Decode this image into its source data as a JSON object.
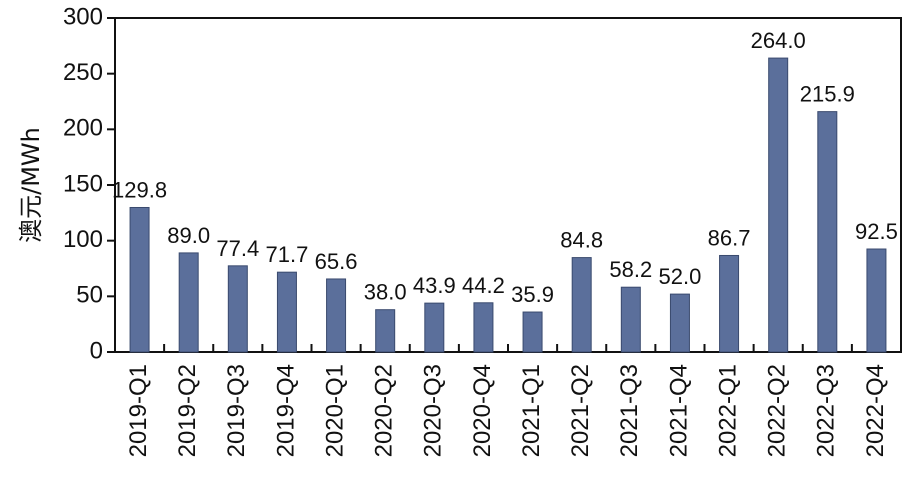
{
  "chart_data": {
    "type": "bar",
    "categories": [
      "2019-Q1",
      "2019-Q2",
      "2019-Q3",
      "2019-Q4",
      "2020-Q1",
      "2020-Q2",
      "2020-Q3",
      "2020-Q4",
      "2021-Q1",
      "2021-Q2",
      "2021-Q3",
      "2021-Q4",
      "2022-Q1",
      "2022-Q2",
      "2022-Q3",
      "2022-Q4"
    ],
    "values": [
      129.8,
      89.0,
      77.4,
      71.7,
      65.6,
      38.0,
      43.9,
      44.2,
      35.9,
      84.8,
      58.2,
      52.0,
      86.7,
      264.0,
      215.9,
      92.5
    ],
    "value_labels": [
      "129.8",
      "89.0",
      "77.4",
      "71.7",
      "65.6",
      "38.0",
      "43.9",
      "44.2",
      "35.9",
      "84.8",
      "58.2",
      "52.0",
      "86.7",
      "264.0",
      "215.9",
      "92.5"
    ],
    "title": "",
    "xlabel": "",
    "ylabel": "澳元/MWh",
    "ylim": [
      0,
      300
    ],
    "yticks": [
      "0",
      "50",
      "100",
      "150",
      "200",
      "250",
      "300"
    ],
    "grid": false,
    "bar_color": "#5b6f9b"
  }
}
